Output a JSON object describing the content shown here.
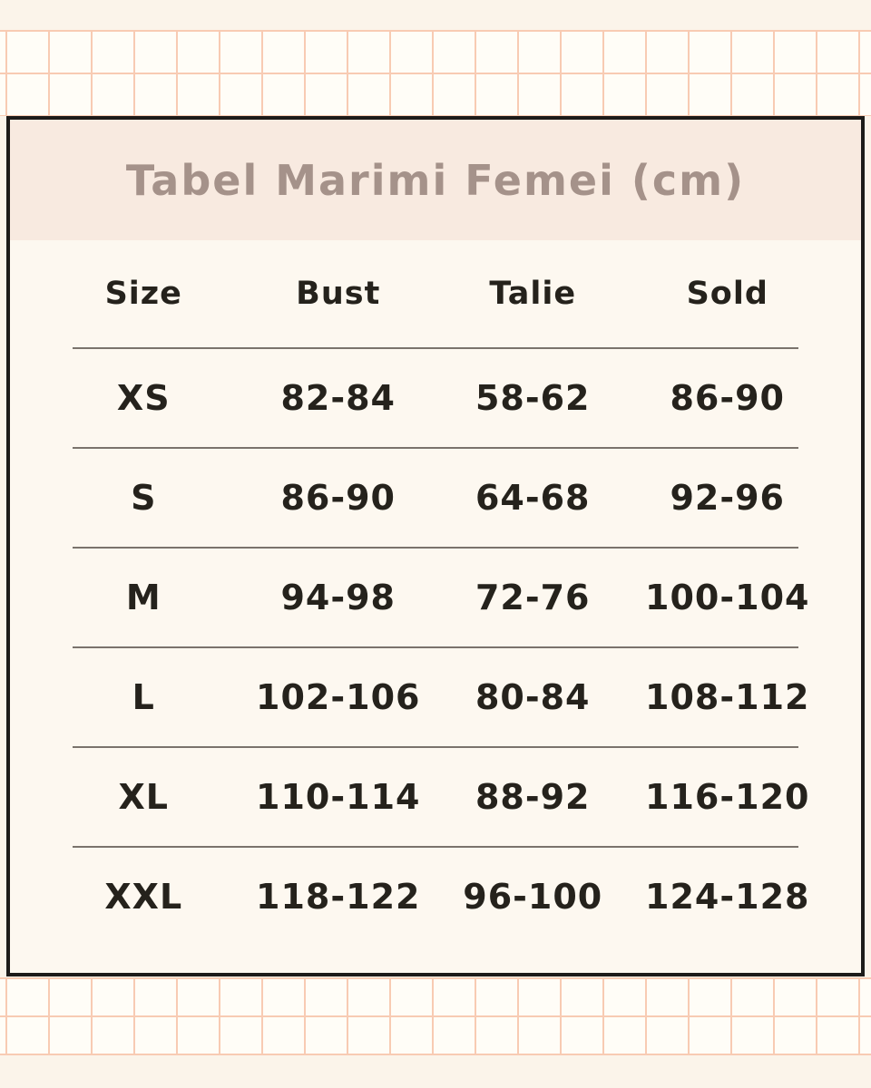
{
  "page": {
    "title": "Tabel Marimi Femei (cm)"
  },
  "table": {
    "columns": [
      "Size",
      "Bust",
      "Talie",
      "Sold"
    ],
    "rows": [
      {
        "size": "XS",
        "bust": "82-84",
        "talie": "58-62",
        "sold": "86-90"
      },
      {
        "size": "S",
        "bust": "86-90",
        "talie": "64-68",
        "sold": "92-96"
      },
      {
        "size": "M",
        "bust": "94-98",
        "talie": "72-76",
        "sold": "100-104"
      },
      {
        "size": "L",
        "bust": "102-106",
        "talie": "80-84",
        "sold": "108-112"
      },
      {
        "size": "XL",
        "bust": "110-114",
        "talie": "88-92",
        "sold": "116-120"
      },
      {
        "size": "XXL",
        "bust": "118-122",
        "talie": "96-100",
        "sold": "124-128"
      }
    ]
  },
  "colors": {
    "page_background": "#fbf4ea",
    "grid_cell_fill": "#fffdf7",
    "grid_line": "#f8cbb3",
    "card_background": "#fdf8f0",
    "card_header_background": "#f8eae0",
    "card_border": "#1d1b19",
    "title_text": "#a5928a",
    "table_text": "#25221c",
    "separator_line": "#7a736c"
  },
  "chart_data": {
    "type": "table",
    "title": "Tabel Marimi Femei (cm)",
    "columns": [
      "Size",
      "Bust",
      "Talie",
      "Sold"
    ],
    "rows": [
      [
        "XS",
        "82-84",
        "58-62",
        "86-90"
      ],
      [
        "S",
        "86-90",
        "64-68",
        "92-96"
      ],
      [
        "M",
        "94-98",
        "72-76",
        "100-104"
      ],
      [
        "L",
        "102-106",
        "80-84",
        "108-112"
      ],
      [
        "XL",
        "110-114",
        "88-92",
        "116-120"
      ],
      [
        "XXL",
        "118-122",
        "96-100",
        "124-128"
      ]
    ],
    "units": "cm",
    "layout_hints": {
      "header_band": true,
      "row_separators": "horizontal lines between rows",
      "background_pattern": "peach squared-paper grid bands at top and bottom"
    }
  }
}
